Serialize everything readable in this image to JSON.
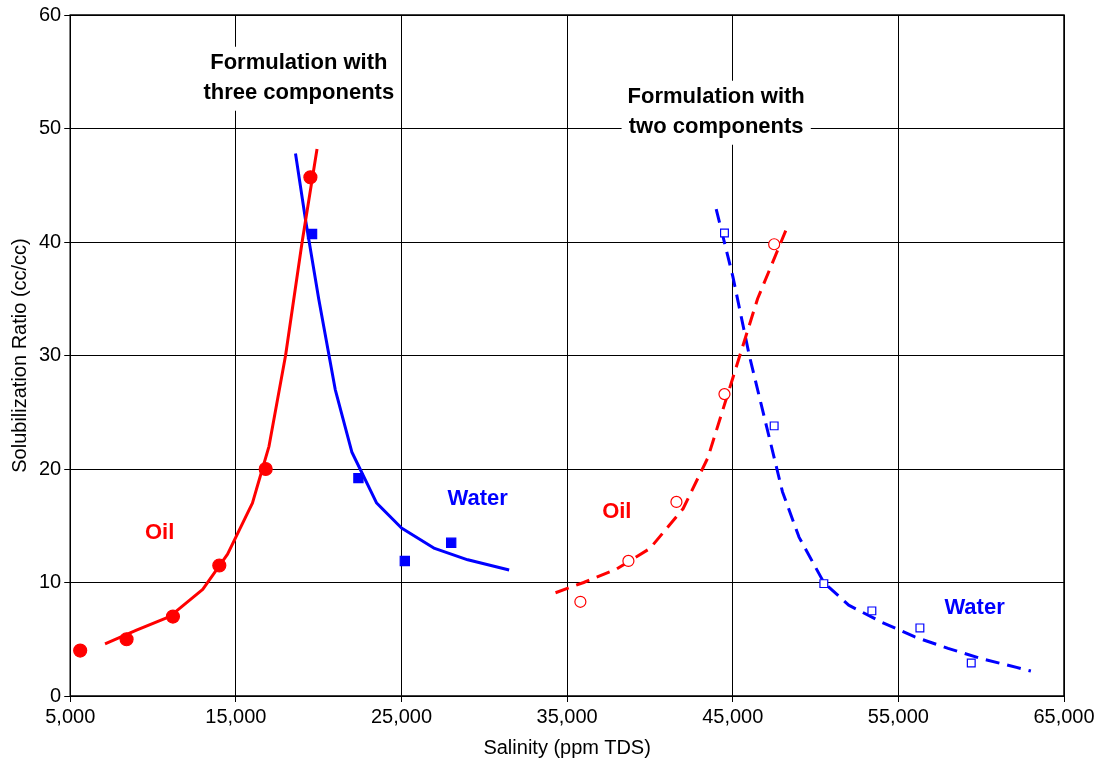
{
  "chart_data": {
    "type": "scatter",
    "xlabel": "Salinity (ppm TDS)",
    "ylabel": "Solubilization Ratio (cc/cc)",
    "annotations": [
      "Formulation with\nthree components",
      "Formulation with\ntwo components"
    ],
    "xlim": [
      5000,
      65000
    ],
    "xticks": [
      {
        "value": 5000,
        "label": "5,000"
      },
      {
        "value": 15000,
        "label": "15,000"
      },
      {
        "value": 25000,
        "label": "25,000"
      },
      {
        "value": 35000,
        "label": "35,000"
      },
      {
        "value": 45000,
        "label": "45,000"
      },
      {
        "value": 55000,
        "label": "55,000"
      },
      {
        "value": 65000,
        "label": "65,000"
      }
    ],
    "ylim": [
      0,
      60
    ],
    "yticks": [
      0,
      10,
      20,
      30,
      40,
      50,
      60
    ],
    "grid": true,
    "legend": false,
    "series": [
      {
        "type": "scatter",
        "name": "Oil",
        "color": "#ff0000",
        "marker": "circle",
        "x": [
          5600,
          8400,
          11200,
          14000,
          16800,
          19500
        ],
        "values": [
          4.0,
          5.0,
          7.0,
          11.5,
          20.0,
          45.7
        ]
      },
      {
        "type": "scatter",
        "name": "Water",
        "color": "#0000ff",
        "marker": "square",
        "x": [
          19600,
          22400,
          25200,
          28000
        ],
        "values": [
          40.7,
          19.2,
          11.9,
          13.5
        ]
      },
      {
        "type": "scatter",
        "name": "Oil",
        "color": "#ff0000",
        "marker": "circle",
        "x": [
          35800,
          38700,
          41600,
          44500,
          47500
        ],
        "values": [
          8.3,
          11.9,
          17.1,
          26.6,
          39.8
        ]
      },
      {
        "type": "scatter",
        "name": "Water",
        "color": "#0000ff",
        "marker": "square",
        "x": [
          44500,
          47500,
          50500,
          53400,
          56300,
          59400
        ],
        "values": [
          40.8,
          23.8,
          9.9,
          7.5,
          6.0,
          2.9
        ]
      },
      {
        "type": "line",
        "color": "#ff0000",
        "line_style": "solid",
        "x": [
          7100,
          9000,
          11000,
          13000,
          14500,
          16000,
          17000,
          18000,
          19000,
          19900
        ],
        "values": [
          4.6,
          5.8,
          7.0,
          9.4,
          12.5,
          17,
          22,
          30,
          40,
          48.2
        ]
      },
      {
        "type": "line",
        "color": "#0000ff",
        "line_style": "solid",
        "x": [
          18600,
          19200,
          20000,
          21000,
          22000,
          23500,
          25000,
          27000,
          29000,
          31500
        ],
        "values": [
          47.8,
          42,
          35,
          27,
          21.5,
          17,
          14.8,
          13,
          12,
          11.1
        ]
      },
      {
        "type": "line",
        "color": "#ff0000",
        "line_style": "dashed",
        "x": [
          34300,
          36000,
          38000,
          40000,
          42000,
          43500,
          45000,
          46500,
          48200
        ],
        "values": [
          9.1,
          10,
          11.2,
          13,
          16.5,
          21,
          28,
          35,
          41
        ]
      },
      {
        "type": "line",
        "color": "#0000ff",
        "line_style": "dashed",
        "x": [
          44000,
          45000,
          46000,
          47000,
          48000,
          49000,
          50500,
          52000,
          54000,
          56000,
          58000,
          60000,
          63000
        ],
        "values": [
          42.9,
          37,
          30,
          24,
          18,
          14,
          10,
          8,
          6.5,
          5.2,
          4.2,
          3.3,
          2.2
        ]
      }
    ]
  }
}
